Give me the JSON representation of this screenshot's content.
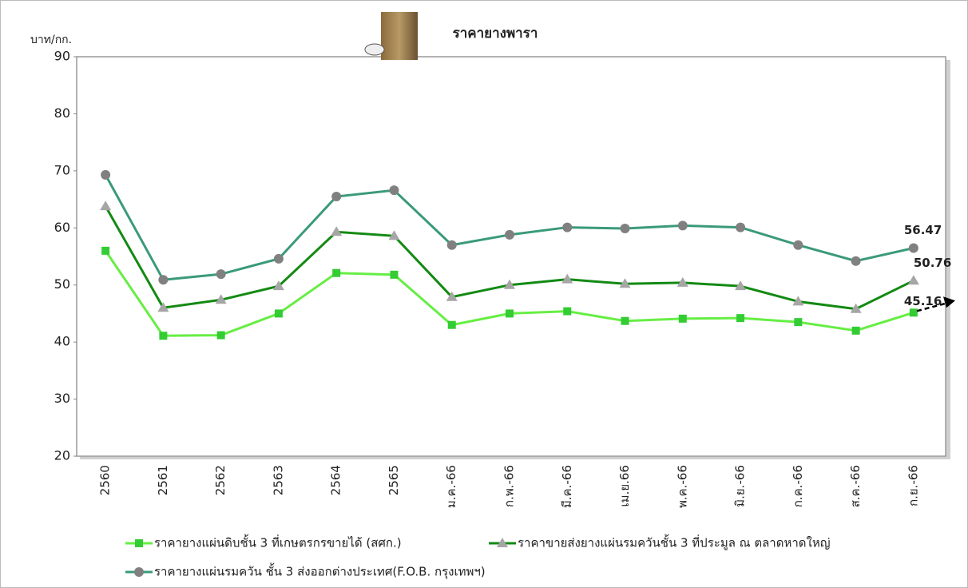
{
  "chart_data": {
    "type": "line",
    "title": "ราคายางพารา",
    "y_label": "บาท/กก.",
    "categories": [
      "2560",
      "2561",
      "2562",
      "2563",
      "2564",
      "2565",
      "ม.ค.-66",
      "ก.พ.-66",
      "มี.ค.-66",
      "เม.ย.66",
      "พ.ค.-66",
      "มิ.ย.-66",
      "ก.ค.-66",
      "ส.ค.-66",
      "ก.ย.-66"
    ],
    "series": [
      {
        "name": "ราคายางแผ่นดิบชั้น 3 ที่เกษตรกรขายได้ (สศก.)",
        "color": "#66ee44",
        "marker_color": "#33cc33",
        "marker": "square",
        "values": [
          56,
          41.1,
          41.2,
          45,
          52.1,
          51.8,
          43,
          45,
          45.4,
          43.7,
          44.1,
          44.2,
          43.5,
          42,
          45.16
        ]
      },
      {
        "name": "ราคาขายส่งยางแผ่นรมควันชั้น 3 ที่ประมูล ณ ตลาดหาดใหญ่",
        "color": "#138a13",
        "marker_color": "#a6a6a6",
        "marker": "triangle",
        "values": [
          63.8,
          46,
          47.4,
          49.8,
          59.3,
          58.6,
          47.9,
          50,
          51,
          50.2,
          50.4,
          49.8,
          47.1,
          45.8,
          50.76
        ]
      },
      {
        "name": "ราคายางแผ่นรมควัน ชั้น 3 ส่งออกต่างประเทศ(F.O.B. กรุงเทพฯ)",
        "color": "#3a9a7a",
        "marker_color": "#808080",
        "marker": "circle",
        "values": [
          69.3,
          50.9,
          51.9,
          54.6,
          65.5,
          66.6,
          57,
          58.8,
          60.1,
          59.9,
          60.4,
          60.1,
          57,
          54.2,
          56.47
        ]
      }
    ],
    "ylim": [
      20,
      90
    ],
    "yticks": [
      20,
      30,
      40,
      50,
      60,
      70,
      80,
      90
    ]
  }
}
